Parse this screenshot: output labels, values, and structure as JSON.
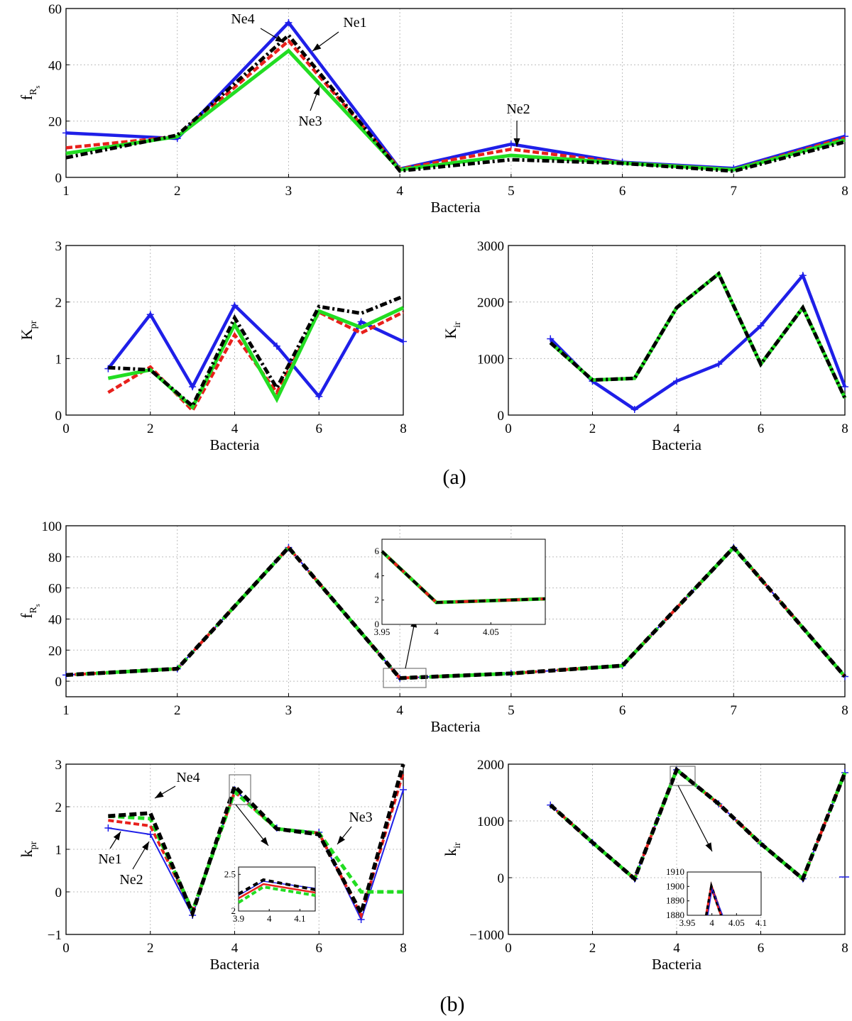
{
  "colors": {
    "Ne1": "#1f1fe8",
    "Ne2": "#e8201c",
    "Ne3": "#22dd22",
    "Ne4": "#000000"
  },
  "captions": [
    "(a)",
    "(b)"
  ],
  "chart_data": [
    {
      "id": "a1",
      "type": "line",
      "xlabel": "Bacteria",
      "ylabel": "f",
      "ylabel_sub": "R",
      "ylabel_sub2": "s",
      "xlim": [
        1,
        8
      ],
      "ylim": [
        0,
        60
      ],
      "xticks": [
        1,
        2,
        3,
        4,
        5,
        6,
        7,
        8
      ],
      "yticks": [
        0,
        20,
        40,
        60
      ],
      "grid": true,
      "x": [
        1,
        2,
        3,
        4,
        5,
        6,
        7,
        8
      ],
      "series": [
        {
          "name": "Ne1",
          "values": [
            15.8,
            13.8,
            55.0,
            3.0,
            11.8,
            5.4,
            3.2,
            14.6
          ]
        },
        {
          "name": "Ne2",
          "values": [
            10.5,
            14.5,
            48.5,
            3.0,
            10.0,
            5.2,
            2.8,
            14.0
          ]
        },
        {
          "name": "Ne3",
          "values": [
            8.5,
            14.5,
            45.0,
            2.7,
            7.8,
            5.1,
            2.7,
            13.3
          ]
        },
        {
          "name": "Ne4",
          "values": [
            7.0,
            15.0,
            50.5,
            2.3,
            6.3,
            5.0,
            2.2,
            12.6
          ]
        }
      ],
      "annotations": [
        "Ne4",
        "Ne1",
        "Ne3",
        "Ne2"
      ]
    },
    {
      "id": "a2",
      "type": "line",
      "xlabel": "Bacteria",
      "ylabel": "K",
      "ylabel_sub": "pr",
      "xlim": [
        0,
        8
      ],
      "ylim": [
        0,
        3
      ],
      "xticks": [
        0,
        2,
        4,
        6,
        8
      ],
      "yticks": [
        0,
        1,
        2,
        3
      ],
      "grid": true,
      "x": [
        1,
        2,
        3,
        4,
        5,
        6,
        7,
        8
      ],
      "series": [
        {
          "name": "Ne1",
          "values": [
            0.82,
            1.78,
            0.5,
            1.94,
            1.22,
            0.33,
            1.65,
            1.3
          ]
        },
        {
          "name": "Ne2",
          "values": [
            0.4,
            0.85,
            0.08,
            1.42,
            0.4,
            1.82,
            1.45,
            1.82
          ]
        },
        {
          "name": "Ne3",
          "values": [
            0.65,
            0.8,
            0.14,
            1.6,
            0.28,
            1.84,
            1.55,
            1.9
          ]
        },
        {
          "name": "Ne4",
          "values": [
            0.84,
            0.8,
            0.16,
            1.72,
            0.48,
            1.92,
            1.8,
            2.1
          ]
        }
      ]
    },
    {
      "id": "a3",
      "type": "line",
      "xlabel": "Bacteria",
      "ylabel": "K",
      "ylabel_sub": "ir",
      "xlim": [
        0,
        8
      ],
      "ylim": [
        0,
        3000
      ],
      "xticks": [
        0,
        2,
        4,
        6,
        8
      ],
      "yticks": [
        0,
        1000,
        2000,
        3000
      ],
      "grid": true,
      "x": [
        1,
        2,
        3,
        4,
        5,
        6,
        7,
        8
      ],
      "series": [
        {
          "name": "Ne1",
          "values": [
            1350,
            600,
            100,
            600,
            900,
            1580,
            2470,
            500
          ]
        },
        {
          "name": "Ne2",
          "values": [
            1280,
            620,
            650,
            1900,
            2500,
            900,
            1900,
            300
          ]
        },
        {
          "name": "Ne3",
          "values": [
            1280,
            620,
            650,
            1900,
            2500,
            900,
            1900,
            300
          ]
        },
        {
          "name": "Ne4",
          "values": [
            1280,
            620,
            650,
            1900,
            2500,
            900,
            1900,
            300
          ]
        }
      ]
    },
    {
      "id": "b1",
      "type": "line",
      "xlabel": "Bacteria",
      "ylabel": "f",
      "ylabel_sub": "R",
      "ylabel_sub2": "s",
      "xlim": [
        1,
        8
      ],
      "ylim": [
        -10,
        100
      ],
      "xticks": [
        1,
        2,
        3,
        4,
        5,
        6,
        7,
        8
      ],
      "yticks": [
        0,
        20,
        40,
        60,
        80,
        100
      ],
      "grid": true,
      "x": [
        1,
        2,
        3,
        4,
        5,
        6,
        7,
        8
      ],
      "series": [
        {
          "name": "Ne1",
          "values": [
            4,
            8,
            86,
            2,
            5,
            10,
            86,
            3
          ]
        },
        {
          "name": "Ne2",
          "values": [
            4,
            8,
            86,
            2,
            5,
            10,
            86,
            3
          ]
        },
        {
          "name": "Ne3",
          "values": [
            4,
            8,
            86,
            2,
            5,
            10,
            86,
            3
          ]
        },
        {
          "name": "Ne4",
          "values": [
            4,
            8,
            86,
            2,
            5,
            10,
            86,
            3
          ]
        }
      ],
      "inset": {
        "xlim": [
          3.95,
          4.1
        ],
        "ylim": [
          0,
          7
        ],
        "xticks": [
          "3.95",
          "4",
          "4.05"
        ],
        "yticks": [
          "0",
          "2",
          "4",
          "6"
        ],
        "x": [
          3.95,
          4,
          4.1
        ],
        "values": [
          6,
          1.8,
          2.1
        ]
      }
    },
    {
      "id": "b2",
      "type": "line",
      "xlabel": "Bacteria",
      "ylabel": "k",
      "ylabel_sub": "pr",
      "xlim": [
        0,
        8
      ],
      "ylim": [
        -1,
        3
      ],
      "xticks": [
        0,
        2,
        4,
        6,
        8
      ],
      "yticks": [
        -1,
        0,
        1,
        2,
        3
      ],
      "grid": true,
      "x": [
        1,
        2,
        3,
        4,
        5,
        6,
        7,
        8
      ],
      "series": [
        {
          "name": "Ne1",
          "values": [
            1.5,
            1.35,
            -0.55,
            2.4,
            1.5,
            1.4,
            -0.65,
            2.4
          ]
        },
        {
          "name": "Ne2",
          "values": [
            1.68,
            1.55,
            -0.45,
            2.35,
            1.48,
            1.38,
            -0.55,
            2.8
          ]
        },
        {
          "name": "Ne3",
          "values": [
            1.78,
            1.72,
            -0.45,
            2.35,
            1.48,
            1.38,
            0.0,
            0.0
          ]
        },
        {
          "name": "Ne4",
          "values": [
            1.78,
            1.85,
            -0.5,
            2.48,
            1.48,
            1.35,
            -0.5,
            3.0
          ]
        }
      ],
      "annotations": [
        "Ne4",
        "Ne1",
        "Ne2",
        "Ne3"
      ],
      "inset": {
        "xlim": [
          3.9,
          4.15
        ],
        "ylim": [
          2,
          2.6
        ],
        "xticks": [
          "3.9",
          "4",
          "4.1"
        ],
        "yticks": [
          "2",
          "2.5"
        ]
      }
    },
    {
      "id": "b3",
      "type": "line",
      "xlabel": "Bacteria",
      "ylabel": "k",
      "ylabel_sub": "ir",
      "xlim": [
        0,
        8
      ],
      "ylim": [
        -1000,
        2000
      ],
      "xticks": [
        0,
        2,
        4,
        6,
        8
      ],
      "yticks": [
        -1000,
        0,
        1000,
        2000
      ],
      "grid": true,
      "x": [
        1,
        2,
        3,
        4,
        5,
        6,
        7,
        8
      ],
      "series": [
        {
          "name": "Ne1",
          "values": [
            1280,
            620,
            -20,
            1900,
            1300,
            600,
            -20,
            1850
          ]
        },
        {
          "name": "Ne2",
          "values": [
            1280,
            620,
            -20,
            1900,
            1300,
            600,
            -20,
            1850
          ]
        },
        {
          "name": "Ne3",
          "values": [
            1280,
            620,
            -20,
            1900,
            1300,
            600,
            -20,
            1850
          ]
        },
        {
          "name": "Ne4",
          "values": [
            1280,
            620,
            -20,
            1900,
            1300,
            600,
            -20,
            1850
          ]
        }
      ],
      "inset": {
        "xlim": [
          3.95,
          4.1
        ],
        "ylim": [
          1880,
          1910
        ],
        "xticks": [
          "3.95",
          "4",
          "4.05",
          "4.1"
        ],
        "yticks": [
          "1880",
          "1890",
          "1900",
          "1910"
        ]
      }
    }
  ]
}
